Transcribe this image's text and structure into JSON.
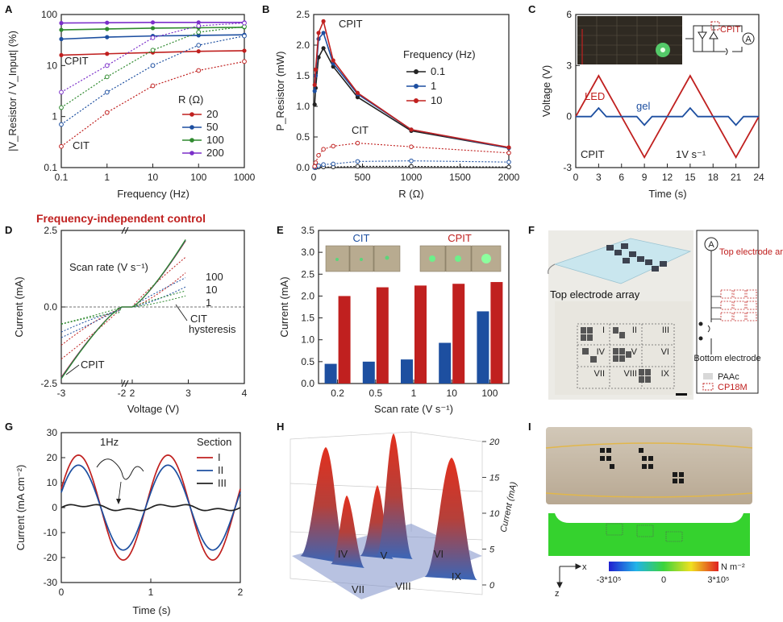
{
  "panel_letters": [
    "A",
    "B",
    "C",
    "D",
    "E",
    "F",
    "G",
    "H",
    "I"
  ],
  "chart_data": [
    {
      "panel": "A",
      "type": "line",
      "xscale": "log",
      "yscale": "log",
      "xlim": [
        0.1,
        1000
      ],
      "ylim": [
        0.1,
        100
      ],
      "xlabel": "Frequency (Hz)",
      "ylabel": "|V_Resistor / V_Input| (%)",
      "xticks": [
        "0.1",
        "1",
        "10",
        "100",
        "1000"
      ],
      "yticks": [
        "0.1",
        "1",
        "10",
        "100"
      ],
      "legend_title": "R (Ω)",
      "annotations": [
        "CPIT",
        "CIT"
      ],
      "series": [
        {
          "name": "20",
          "color": "#c0201f",
          "x": [
            0.1,
            1,
            10,
            100,
            1000
          ],
          "cpit": [
            16,
            17,
            18,
            19,
            19.5
          ],
          "cit": [
            0.26,
            1.2,
            4,
            8,
            12
          ]
        },
        {
          "name": "50",
          "color": "#1d4fa0",
          "x": [
            0.1,
            1,
            10,
            100,
            1000
          ],
          "cpit": [
            33,
            36,
            38,
            39,
            40
          ],
          "cit": [
            0.7,
            3,
            10,
            25,
            38
          ]
        },
        {
          "name": "100",
          "color": "#2f8a2f",
          "x": [
            0.1,
            1,
            10,
            100,
            1000
          ],
          "cpit": [
            50,
            52,
            54,
            55,
            56
          ],
          "cit": [
            1.5,
            6,
            20,
            45,
            58
          ]
        },
        {
          "name": "200",
          "color": "#7b2fc9",
          "x": [
            0.1,
            1,
            10,
            100,
            1000
          ],
          "cpit": [
            68,
            69,
            70,
            70,
            70
          ],
          "cit": [
            3,
            10,
            35,
            60,
            68
          ]
        }
      ]
    },
    {
      "panel": "B",
      "type": "line",
      "xlim": [
        0,
        2000
      ],
      "ylim": [
        0,
        2.5
      ],
      "xlabel": "R (Ω)",
      "ylabel": "P_Resistor (mW)",
      "xticks": [
        "0",
        "500",
        "1000",
        "1500",
        "2000"
      ],
      "yticks": [
        "0.0",
        "0.5",
        "1.0",
        "1.5",
        "2.0",
        "2.5"
      ],
      "legend_title": "Frequency (Hz)",
      "annotations": [
        "CPIT",
        "CIT"
      ],
      "x": [
        10,
        20,
        50,
        100,
        200,
        450,
        1000,
        2000
      ],
      "series": [
        {
          "name": "0.1",
          "color": "#222222",
          "cpit": [
            1.03,
            1.3,
            1.8,
            1.95,
            1.65,
            1.15,
            0.6,
            0.32
          ],
          "cit": [
            0.0,
            0.0,
            0.01,
            0.01,
            0.01,
            0.02,
            0.02,
            0.01
          ]
        },
        {
          "name": "1",
          "color": "#1d4fa0",
          "cpit": [
            1.25,
            1.5,
            2.1,
            2.2,
            1.7,
            1.2,
            0.62,
            0.32
          ],
          "cit": [
            0.0,
            0.01,
            0.03,
            0.05,
            0.06,
            0.1,
            0.11,
            0.09
          ]
        },
        {
          "name": "10",
          "color": "#c0201f",
          "cpit": [
            1.35,
            1.6,
            2.2,
            2.39,
            1.75,
            1.22,
            0.62,
            0.33
          ],
          "cit": [
            0.02,
            0.08,
            0.2,
            0.3,
            0.35,
            0.4,
            0.34,
            0.24
          ]
        }
      ]
    },
    {
      "panel": "C",
      "type": "line",
      "xlim": [
        0,
        24
      ],
      "ylim": [
        -3,
        6
      ],
      "xlabel": "Time (s)",
      "ylabel": "Voltage (V)",
      "xticks": [
        "0",
        "3",
        "6",
        "9",
        "12",
        "15",
        "18",
        "21",
        "24"
      ],
      "yticks": [
        "-3",
        "0",
        "3",
        "6"
      ],
      "labels": {
        "led": "LED",
        "gel": "gel",
        "cpit": "CPIT",
        "rate": "1V s⁻¹",
        "circuit_label": "CPIT",
        "meter": "A"
      },
      "series": [
        {
          "name": "LED",
          "color": "#c0201f",
          "x": [
            0,
            3,
            9,
            15,
            21,
            24
          ],
          "y": [
            0,
            2.4,
            -2.4,
            2.4,
            -2.4,
            0
          ]
        },
        {
          "name": "gel",
          "color": "#1d4fa0",
          "x": [
            0,
            2,
            3,
            4,
            5,
            8,
            9,
            10,
            11,
            14,
            15,
            16,
            17,
            20,
            21,
            22,
            24
          ],
          "y": [
            0,
            0,
            0.5,
            0,
            0,
            0,
            -0.5,
            0,
            0,
            0,
            0.5,
            0,
            0,
            0,
            -0.5,
            0,
            0
          ]
        }
      ]
    },
    {
      "panel": "D",
      "type": "line",
      "title": "Frequency-independent control",
      "xlim": [
        -3,
        4
      ],
      "ylim": [
        -2.5,
        2.5
      ],
      "xlabel": "Voltage (V)",
      "ylabel": "Current (mA)",
      "xticks": [
        "-3",
        "-2",
        "2",
        "3",
        "4"
      ],
      "yticks": [
        "-2.5",
        "0.0",
        "2.5"
      ],
      "legend_title": "Scan rate (V s⁻¹)",
      "annotations": [
        "CIT",
        "hysteresis",
        "CPIT"
      ],
      "series": [
        {
          "name": "100",
          "color": "#c0201f"
        },
        {
          "name": "10",
          "color": "#1d4fa0"
        },
        {
          "name": "1",
          "color": "#2f8a2f"
        }
      ]
    },
    {
      "panel": "E",
      "type": "bar",
      "categories": [
        "0.2",
        "0.5",
        "1",
        "10",
        "100"
      ],
      "ylim": [
        0,
        3.5
      ],
      "xlabel": "Scan rate (V s⁻¹)",
      "ylabel": "Current (mA)",
      "yticks": [
        "0.0",
        "0.5",
        "1.0",
        "1.5",
        "2.0",
        "2.5",
        "3.0",
        "3.5"
      ],
      "photo_labels": [
        "CIT",
        "CPIT"
      ],
      "series": [
        {
          "name": "CIT",
          "color": "#1d4fa0",
          "values": [
            0.45,
            0.5,
            0.55,
            0.93,
            1.65
          ]
        },
        {
          "name": "CPIT",
          "color": "#c0201f",
          "values": [
            2.0,
            2.2,
            2.24,
            2.28,
            2.32
          ]
        }
      ]
    },
    {
      "panel": "G",
      "type": "line",
      "xlim": [
        0,
        2
      ],
      "ylim": [
        -30,
        30
      ],
      "xlabel": "Time (s)",
      "ylabel": "Current (mA cm⁻²)",
      "xticks": [
        "0",
        "1",
        "2"
      ],
      "yticks": [
        "-30",
        "-20",
        "-10",
        "0",
        "10",
        "20",
        "30"
      ],
      "legend_title": "Section",
      "annotations": [
        "1Hz"
      ],
      "series": [
        {
          "name": "I",
          "color": "#c0201f",
          "amp": 21
        },
        {
          "name": "II",
          "color": "#1d4fa0",
          "amp": 17
        },
        {
          "name": "III",
          "color": "#222222",
          "amp": 1
        }
      ]
    },
    {
      "panel": "H",
      "type": "surface",
      "zlabel": "Current (mA)",
      "zticks": [
        "0",
        "5",
        "10",
        "15",
        "20"
      ],
      "section_labels": [
        "IV",
        "V",
        "VI",
        "VII",
        "VIII",
        "IX"
      ]
    }
  ],
  "panel_F": {
    "title": "Top electrode array",
    "section_labels": [
      "I",
      "II",
      "III",
      "IV",
      "V",
      "VI",
      "VII",
      "VIII",
      "IX"
    ],
    "legend": {
      "meter": "A",
      "top": "Top electrode array",
      "bottom": "Bottom electrode",
      "paac": "PAAc",
      "cp": "CP18M"
    }
  },
  "panel_I": {
    "axes": {
      "x": "x",
      "z": "z"
    },
    "colorbar": {
      "min": "-3*10⁵",
      "mid": "0",
      "max": "3*10⁵",
      "unit": "N m⁻²"
    }
  }
}
